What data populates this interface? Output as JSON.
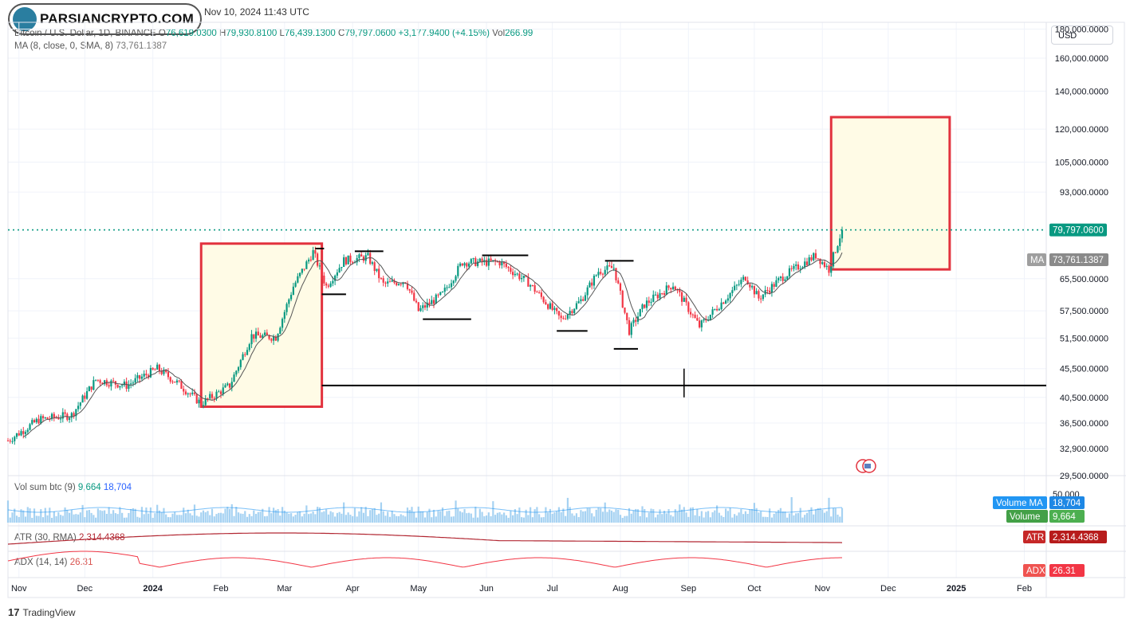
{
  "header": {
    "brand": "PARSIANCRYPTO.COM",
    "publish_info": "Nov 10, 2024 11:43 UTC"
  },
  "legend": {
    "symbol": "Bitcoin / U.S. Dollar, 1D, BINANCE",
    "open_label": "O",
    "open": "76,619.0300",
    "high_label": "H",
    "high": "79,930.8100",
    "low_label": "L",
    "low": "76,439.1300",
    "close_label": "C",
    "close": "79,797.0600",
    "change": "+3,177.9400 (+4.15%)",
    "vol_label": "Vol",
    "vol": "266.99",
    "ma_label": "MA (8, close, 0, SMA, 8)",
    "ma_value": "73,761.1387",
    "vol_ind_label": "Vol sum btc (9)",
    "vol_ind_v1": "9,664",
    "vol_ind_v2": "18,704",
    "atr_label": "ATR (30, RMA)",
    "atr_value": "2,314.4368",
    "adx_label": "ADX (14, 14)",
    "adx_value": "26.31"
  },
  "currency_button": "USD",
  "badges": {
    "price": "79,797.0600",
    "ma_tag": "MA",
    "ma": "73,761.1387",
    "volume_ma_tag": "Volume MA",
    "volume_ma": "18,704",
    "volume_tag": "Volume",
    "volume": "9,664",
    "vol_axis_top": "50,000",
    "atr_tag": "ATR",
    "atr": "2,314.4368",
    "adx_tag": "ADX",
    "adx": "26.31"
  },
  "footer": {
    "logo_text": "TradingView"
  },
  "colors": {
    "up": "#089981",
    "down": "#f23645",
    "ma": "#555555",
    "box_border": "#e2323e",
    "box_fill": "#fffbe6",
    "price_line": "#089981",
    "atr": "#b22833",
    "adx": "#f23645",
    "volume": "#90c7ef",
    "volume_ma": "#2196f3"
  },
  "chart_data": {
    "type": "candlestick",
    "symbol": "BTCUSD",
    "interval": "1D",
    "y_scale": "log",
    "ylim": [
      29500,
      185000
    ],
    "y_ticks": [
      180000,
      160000,
      140000,
      120000,
      105000,
      93000,
      65500,
      57500,
      51500,
      45500,
      40500,
      36500,
      32900,
      29500
    ],
    "y_tick_labels": [
      "180,000.0000",
      "160,000.0000",
      "140,000.0000",
      "120,000.0000",
      "105,000.0000",
      "93,000.0000",
      "65,500.0000",
      "57,500.0000",
      "51,500.0000",
      "45,500.0000",
      "40,500.0000",
      "36,500.0000",
      "32,900.0000",
      "29,500.0000"
    ],
    "x_labels": [
      "Nov",
      "Dec",
      "2024",
      "Feb",
      "Mar",
      "Apr",
      "May",
      "Jun",
      "Jul",
      "Aug",
      "Sep",
      "Oct",
      "Nov",
      "Dec",
      "2025",
      "Feb"
    ],
    "x_label_dates": [
      "2023-11-01",
      "2023-12-01",
      "2024-01-01",
      "2024-02-01",
      "2024-03-01",
      "2024-04-01",
      "2024-05-01",
      "2024-06-01",
      "2024-07-01",
      "2024-08-01",
      "2024-09-01",
      "2024-10-01",
      "2024-11-01",
      "2024-12-01",
      "2025-01-01",
      "2025-02-01"
    ],
    "x_range": [
      "2023-10-27",
      "2025-02-11"
    ],
    "price_line": 79797.06,
    "close_path": [
      [
        "2023-10-27",
        34000
      ],
      [
        "2023-11-10",
        37000
      ],
      [
        "2023-11-25",
        37700
      ],
      [
        "2023-12-06",
        43500
      ],
      [
        "2023-12-20",
        42500
      ],
      [
        "2024-01-03",
        45500
      ],
      [
        "2024-01-12",
        43000
      ],
      [
        "2024-01-23",
        39500
      ],
      [
        "2024-02-05",
        42500
      ],
      [
        "2024-02-15",
        52000
      ],
      [
        "2024-02-26",
        51700
      ],
      [
        "2024-03-05",
        63500
      ],
      [
        "2024-03-14",
        73000
      ],
      [
        "2024-03-20",
        63500
      ],
      [
        "2024-03-28",
        70500
      ],
      [
        "2024-04-08",
        71500
      ],
      [
        "2024-04-15",
        64000
      ],
      [
        "2024-04-25",
        65000
      ],
      [
        "2024-05-01",
        57500
      ],
      [
        "2024-05-12",
        61500
      ],
      [
        "2024-05-21",
        70000
      ],
      [
        "2024-06-07",
        70000
      ],
      [
        "2024-06-20",
        64500
      ],
      [
        "2024-07-05",
        55500
      ],
      [
        "2024-07-14",
        60000
      ],
      [
        "2024-07-22",
        67500
      ],
      [
        "2024-07-29",
        68500
      ],
      [
        "2024-08-05",
        53000
      ],
      [
        "2024-08-12",
        59000
      ],
      [
        "2024-08-25",
        64000
      ],
      [
        "2024-09-06",
        54000
      ],
      [
        "2024-09-17",
        60000
      ],
      [
        "2024-09-27",
        66000
      ],
      [
        "2024-10-03",
        60500
      ],
      [
        "2024-10-14",
        66000
      ],
      [
        "2024-10-29",
        72000
      ],
      [
        "2024-11-04",
        68000
      ],
      [
        "2024-11-10",
        79797
      ]
    ],
    "ma8_last": 73761.1387,
    "annotations": {
      "highlight_boxes": [
        {
          "from": "2024-01-23",
          "to": "2024-03-18",
          "low": 39000,
          "high": 75500
        },
        {
          "from": "2024-11-05",
          "to": "2024-12-29",
          "low": 68000,
          "high": 126000
        }
      ],
      "horizontal_lines": [
        {
          "from": "2024-03-15",
          "to": "2024-03-19",
          "price": 74000
        },
        {
          "from": "2024-03-18",
          "to": "2024-03-29",
          "price": 61500
        },
        {
          "from": "2024-04-02",
          "to": "2024-04-15",
          "price": 73200
        },
        {
          "from": "2024-05-03",
          "to": "2024-05-25",
          "price": 55600
        },
        {
          "from": "2024-05-30",
          "to": "2024-06-20",
          "price": 72000
        },
        {
          "from": "2024-07-03",
          "to": "2024-07-17",
          "price": 53000
        },
        {
          "from": "2024-07-25",
          "to": "2024-08-07",
          "price": 70400
        },
        {
          "from": "2024-07-29",
          "to": "2024-08-09",
          "price": 49300
        },
        {
          "from": "2024-03-18",
          "to": "2025-02-11",
          "price": 42500
        }
      ],
      "vertical_tick": {
        "date": "2024-08-30",
        "low": 40500,
        "high": 45500
      }
    },
    "volume": {
      "label": "Vol sum btc (9)",
      "last": 9664,
      "ma_last": 18704,
      "axis_top": 50000
    },
    "atr": {
      "label": "ATR (30, RMA)",
      "last": 2314.4368
    },
    "adx": {
      "label": "ADX (14, 14)",
      "last": 26.31
    }
  }
}
